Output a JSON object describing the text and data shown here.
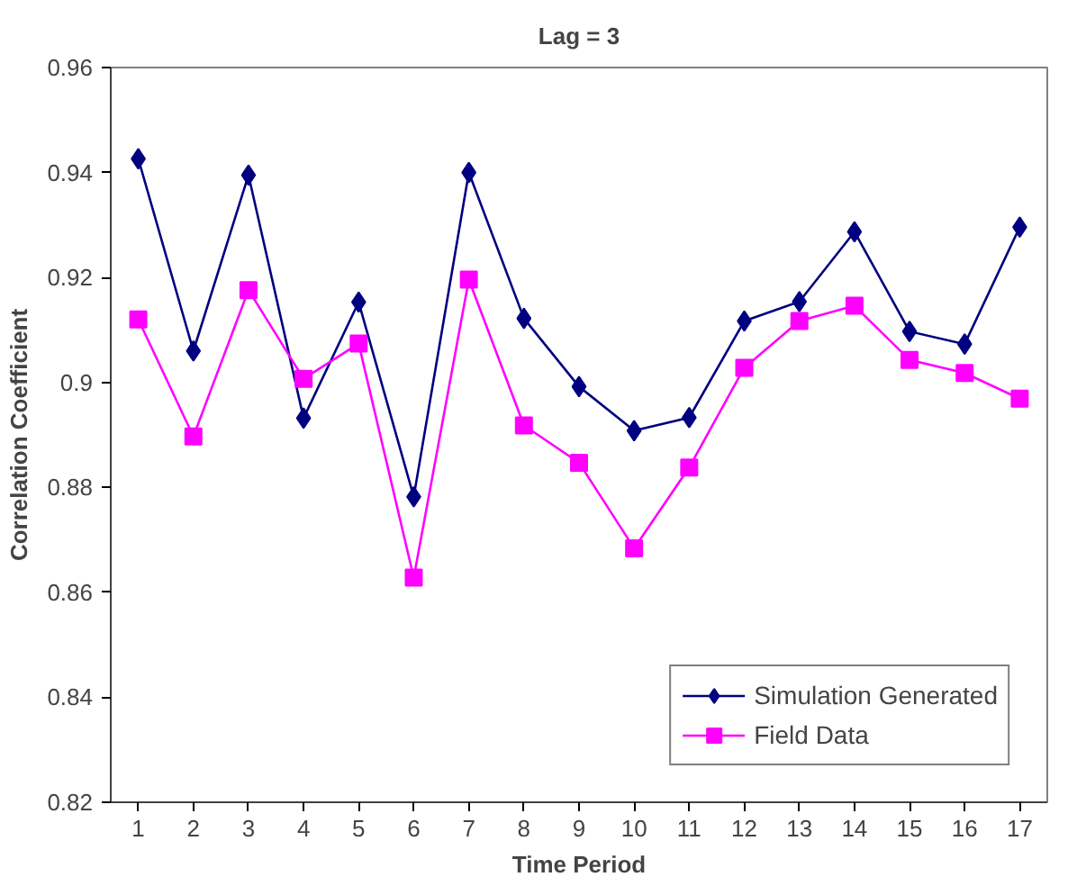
{
  "chart_data": {
    "type": "line",
    "title": "Lag = 3",
    "xlabel": "Time Period",
    "ylabel": "Correlation Coefficient",
    "x": [
      1,
      2,
      3,
      4,
      5,
      6,
      7,
      8,
      9,
      10,
      11,
      12,
      13,
      14,
      15,
      16,
      17
    ],
    "xlim": [
      0.5,
      17.5
    ],
    "xticks": [
      1,
      2,
      3,
      4,
      5,
      6,
      7,
      8,
      9,
      10,
      11,
      12,
      13,
      14,
      15,
      16,
      17
    ],
    "ylim": [
      0.82,
      0.96
    ],
    "yticks": [
      0.82,
      0.84,
      0.86,
      0.88,
      0.9,
      0.92,
      0.94,
      0.96
    ],
    "grid": false,
    "legend": "bottom right",
    "series": [
      {
        "name": "Simulation Generated",
        "color": "#000080",
        "marker": "diamond",
        "values": [
          0.9426,
          0.906,
          0.9395,
          0.8932,
          0.9153,
          0.8782,
          0.94,
          0.9122,
          0.8992,
          0.8908,
          0.8933,
          0.9117,
          0.9154,
          0.9287,
          0.9097,
          0.9073,
          0.9296
        ]
      },
      {
        "name": "Field Data",
        "color": "#ff00ff",
        "marker": "square",
        "values": [
          0.912,
          0.8897,
          0.9176,
          0.9007,
          0.9074,
          0.8628,
          0.9196,
          0.8918,
          0.8847,
          0.8684,
          0.8838,
          0.9028,
          0.9117,
          0.9146,
          0.9043,
          0.9018,
          0.8969
        ]
      }
    ]
  }
}
